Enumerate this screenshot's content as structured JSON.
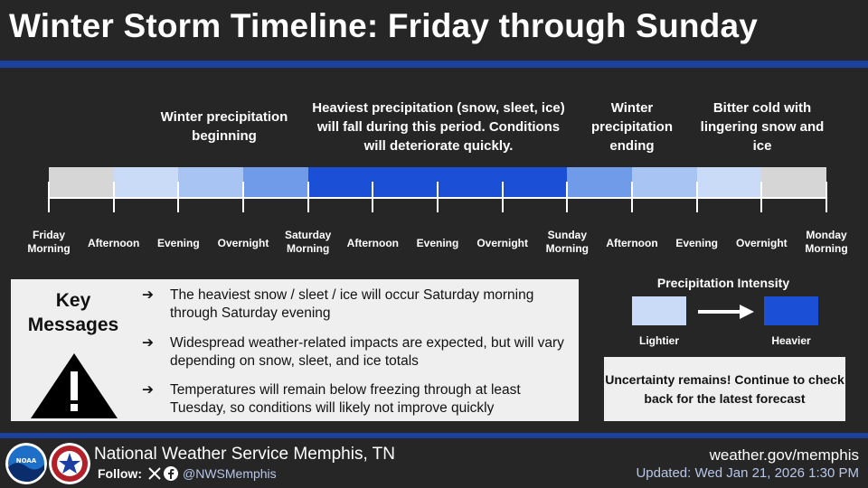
{
  "header": {
    "title": "Winter Storm Timeline: Friday through Sunday"
  },
  "phases": [
    {
      "text": "Winter precipitation beginning"
    },
    {
      "text": "Heaviest precipitation (snow, sleet, ice) will fall during this period. Conditions will deteriorate quickly."
    },
    {
      "text": "Winter precipitation ending"
    },
    {
      "text": "Bitter cold with lingering snow and ice"
    }
  ],
  "timeline": {
    "segment_colors": [
      "#d6d6d6",
      "#c9dbf7",
      "#a7c4f3",
      "#6f9be8",
      "#1b4fd6",
      "#1b4fd6",
      "#1b4fd6",
      "#1b4fd6",
      "#6f9be8",
      "#a7c4f3",
      "#c9dbf7",
      "#d6d6d6"
    ],
    "labels": [
      [
        "Friday",
        "Morning"
      ],
      [
        "Afternoon"
      ],
      [
        "Evening"
      ],
      [
        "Overnight"
      ],
      [
        "Saturday",
        "Morning"
      ],
      [
        "Afternoon"
      ],
      [
        "Evening"
      ],
      [
        "Overnight"
      ],
      [
        "Sunday",
        "Morning"
      ],
      [
        "Afternoon"
      ],
      [
        "Evening"
      ],
      [
        "Overnight"
      ],
      [
        "Monday",
        "Morning"
      ]
    ]
  },
  "key_messages": {
    "title": "Key Messages",
    "arrow": "➔",
    "bullets": [
      "The heaviest snow / sleet / ice will occur Saturday morning through Saturday evening",
      "Widespread weather-related impacts are expected, but will vary depending on snow, sleet, and ice totals",
      "Temperatures will remain below freezing through at least Tuesday, so conditions will likely not improve quickly"
    ]
  },
  "intensity": {
    "title": "Precipitation Intensity",
    "light_label": "Lightier",
    "heavy_label": "Heavier",
    "light_color": "#c9dbf7",
    "heavy_color": "#1b4fd6"
  },
  "uncertainty": {
    "text": "Uncertainty remains! Continue to check back for the latest forecast"
  },
  "footer": {
    "office": "National Weather Service Memphis, TN",
    "follow_label": "Follow:",
    "handle": "@NWSMemphis",
    "website": "weather.gov/memphis",
    "updated": "Updated: Wed Jan 21, 2026 1:30 PM",
    "noaa_logo_text": "NOAA"
  }
}
